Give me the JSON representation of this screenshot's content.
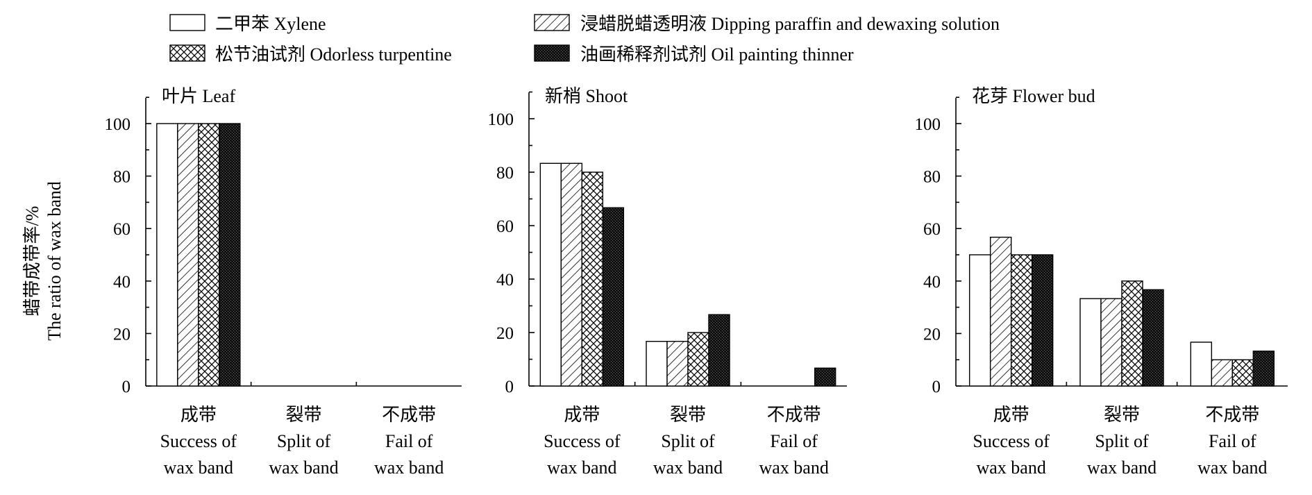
{
  "chart_data": {
    "type": "bar",
    "ylabel": [
      "蜡带成带率/%",
      "The ratio of wax band"
    ],
    "legend": {
      "placement": "top",
      "entries": [
        {
          "label": "二甲苯 Xylene",
          "pattern": "empty"
        },
        {
          "label": "浸蜡脱蜡透明液 Dipping paraffin and dewaxing solution",
          "pattern": "diagonal"
        },
        {
          "label": "松节油试剂 Odorless turpentine",
          "pattern": "crosshatch"
        },
        {
          "label": "油画稀释剂试剂 Oil painting thinner",
          "pattern": "solid"
        }
      ]
    },
    "categories": [
      [
        "成带",
        "Success of",
        "wax band"
      ],
      [
        "裂带",
        "Split of",
        "wax band"
      ],
      [
        "不成带",
        "Fail of",
        "wax band"
      ]
    ],
    "ylim": [
      0,
      110
    ],
    "yticks": [
      0,
      20,
      40,
      60,
      80,
      100
    ],
    "grid": false,
    "panels": [
      {
        "title": "叶片 Leaf",
        "series": [
          {
            "name": "二甲苯 Xylene",
            "values": [
              100,
              0,
              0
            ]
          },
          {
            "name": "浸蜡脱蜡透明液 Dipping paraffin and dewaxing solution",
            "values": [
              100,
              0,
              0
            ]
          },
          {
            "name": "松节油试剂 Odorless turpentine",
            "values": [
              100,
              0,
              0
            ]
          },
          {
            "name": "油画稀释剂试剂 Oil painting thinner",
            "values": [
              100,
              0,
              0
            ]
          }
        ]
      },
      {
        "title": "新梢 Shoot",
        "series": [
          {
            "name": "二甲苯 Xylene",
            "values": [
              83.3,
              16.7,
              0
            ]
          },
          {
            "name": "浸蜡脱蜡透明液 Dipping paraffin and dewaxing solution",
            "values": [
              83.3,
              16.7,
              0
            ]
          },
          {
            "name": "松节油试剂 Odorless turpentine",
            "values": [
              80,
              20,
              0
            ]
          },
          {
            "name": "油画稀释剂试剂 Oil painting thinner",
            "values": [
              66.7,
              26.7,
              6.7
            ]
          }
        ]
      },
      {
        "title": "花芽 Flower bud",
        "series": [
          {
            "name": "二甲苯 Xylene",
            "values": [
              50,
              33.3,
              16.7
            ]
          },
          {
            "name": "浸蜡脱蜡透明液 Dipping paraffin and dewaxing solution",
            "values": [
              56.7,
              33.3,
              10
            ]
          },
          {
            "name": "松节油试剂 Odorless turpentine",
            "values": [
              50,
              40,
              10
            ]
          },
          {
            "name": "油画稀释剂试剂 Oil painting thinner",
            "values": [
              50,
              36.7,
              13.3
            ]
          }
        ]
      }
    ]
  }
}
